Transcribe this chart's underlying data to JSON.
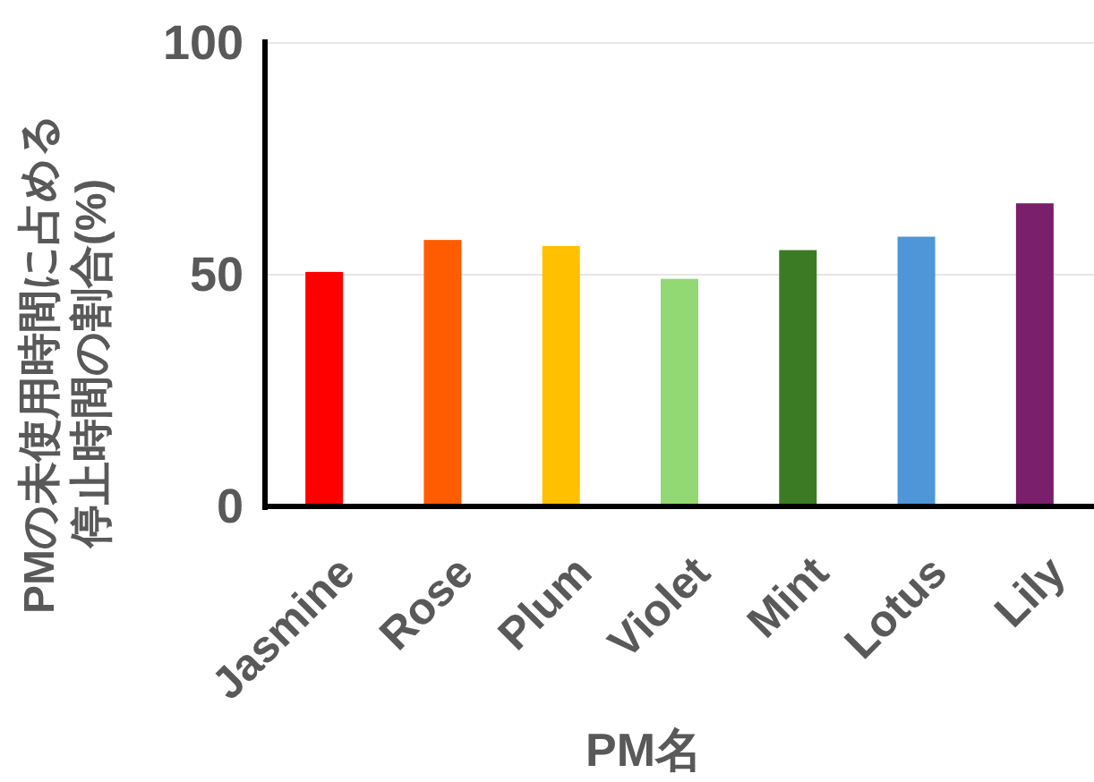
{
  "chart_data": {
    "type": "bar",
    "xlabel": "PM名",
    "ylabel": "PMの未使用時間に占める停止時間の割合(%)",
    "categories": [
      "Jasmine",
      "Rose",
      "Plum",
      "Violet",
      "Mint",
      "Lotus",
      "Lily"
    ],
    "values": [
      50.6,
      57.5,
      56.2,
      49.1,
      55.3,
      58.2,
      65.4
    ],
    "colors": [
      "#ff0000",
      "#ff5b00",
      "#ffc000",
      "#92d973",
      "#3b7b24",
      "#4e96d8",
      "#7a1f6c"
    ],
    "ylim": [
      0,
      100
    ],
    "yticks": [
      0,
      50,
      100
    ],
    "grid": "y"
  }
}
